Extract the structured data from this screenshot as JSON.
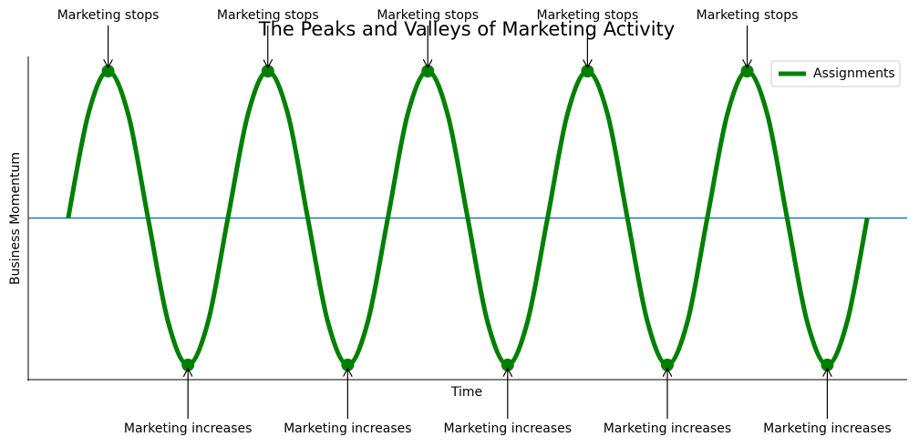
{
  "chart_data": {
    "type": "line",
    "title": "The Peaks and Valleys of Marketing Activity",
    "xlabel": "Time",
    "ylabel": "Business Momentum",
    "x": [
      0,
      0.79,
      1.57,
      2.36,
      3.14,
      3.93,
      4.71,
      5.5,
      6.28,
      7.07,
      7.85,
      8.64,
      9.42,
      10.21,
      11,
      11.78,
      12.57,
      13.35,
      14.14,
      14.92,
      15.71,
      16.49,
      17.28,
      18.06,
      18.85,
      19.63,
      20.42,
      21.21,
      21.99,
      22.78,
      23.56,
      24.35,
      25.13,
      25.92,
      26.7,
      27.49,
      28.27,
      29.06,
      29.85,
      30.63,
      31.42
    ],
    "series": [
      {
        "name": "Assignments",
        "color": "#008000",
        "values": [
          0,
          0.707,
          1,
          0.707,
          0,
          -0.707,
          -1,
          -0.707,
          0,
          0.707,
          1,
          0.707,
          0,
          -0.707,
          -1,
          -0.707,
          0,
          0.707,
          1,
          0.707,
          0,
          -0.707,
          -1,
          -0.707,
          0,
          0.707,
          1,
          0.707,
          0,
          -0.707,
          -1,
          -0.707,
          0,
          0.707,
          1,
          0.707,
          0,
          -0.707,
          -1,
          -0.707,
          0
        ]
      }
    ],
    "hline": 0,
    "hline_color": "#1f77b4",
    "annotations": [
      {
        "text": "Marketing stops",
        "x": 1.57,
        "y": 1
      },
      {
        "text": "Marketing stops",
        "x": 7.85,
        "y": 1
      },
      {
        "text": "Marketing stops",
        "x": 14.14,
        "y": 1
      },
      {
        "text": "Marketing stops",
        "x": 20.42,
        "y": 1
      },
      {
        "text": "Marketing stops",
        "x": 26.7,
        "y": 1
      },
      {
        "text": "Marketing increases",
        "x": 4.71,
        "y": -1
      },
      {
        "text": "Marketing increases",
        "x": 10.99,
        "y": -1
      },
      {
        "text": "Marketing increases",
        "x": 17.28,
        "y": -1
      },
      {
        "text": "Marketing increases",
        "x": 23.56,
        "y": -1
      },
      {
        "text": "Marketing increases",
        "x": 29.85,
        "y": -1
      }
    ],
    "xlim": [
      -1.57,
      32.99
    ],
    "ylim": [
      -1.1,
      1.1
    ],
    "legend": "upper right",
    "grid": false
  }
}
